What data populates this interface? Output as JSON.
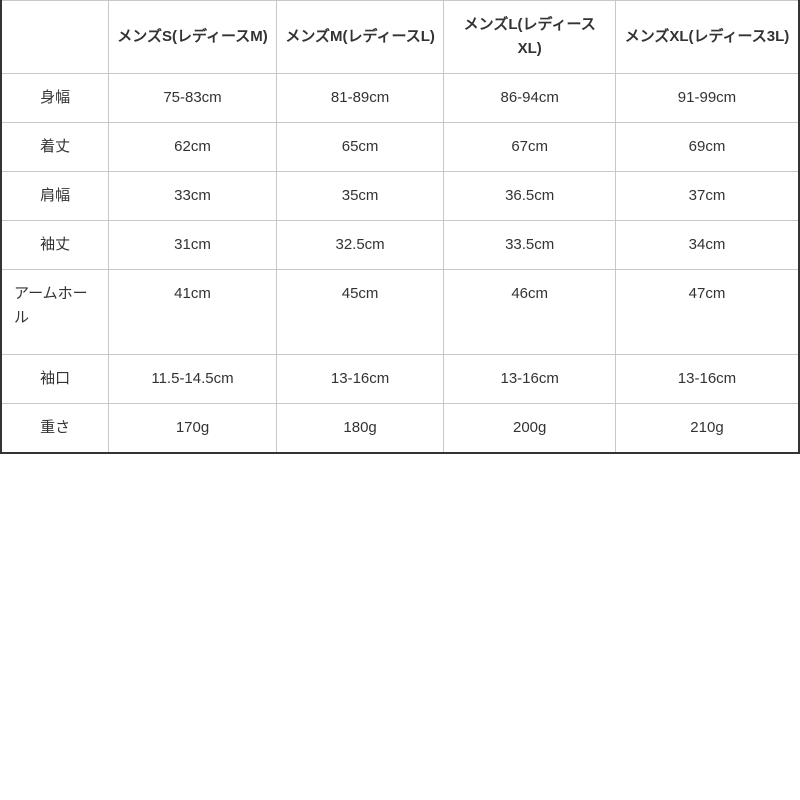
{
  "table": {
    "headers": [
      "",
      "メンズS(レディースM)",
      "メンズM(レディースL)",
      "メンズL(レディースXL)",
      "メンズXL(レディース3L)"
    ],
    "rows": [
      {
        "label": "身幅",
        "values": [
          "75-83cm",
          "81-89cm",
          "86-94cm",
          "91-99cm"
        ]
      },
      {
        "label": "着丈",
        "values": [
          "62cm",
          "65cm",
          "67cm",
          "69cm"
        ]
      },
      {
        "label": "肩幅",
        "values": [
          "33cm",
          "35cm",
          "36.5cm",
          "37cm"
        ]
      },
      {
        "label": "袖丈",
        "values": [
          "31cm",
          "32.5cm",
          "33.5cm",
          "34cm"
        ]
      },
      {
        "label": "アームホール",
        "values": [
          "41cm",
          "45cm",
          "46cm",
          "47cm"
        ]
      },
      {
        "label": "袖口",
        "values": [
          "11.5-14.5cm",
          "13-16cm",
          "13-16cm",
          "13-16cm"
        ]
      },
      {
        "label": "重さ",
        "values": [
          "170g",
          "180g",
          "200g",
          "210g"
        ]
      }
    ]
  }
}
